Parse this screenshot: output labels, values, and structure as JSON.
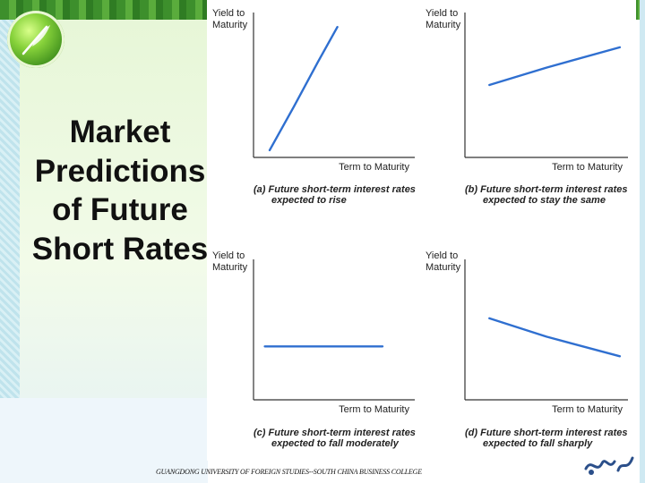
{
  "slide": {
    "title_lines": [
      "Market",
      "Predictions",
      "of Future",
      "Short Rates"
    ],
    "footer": "GUANGDONG UNIVERSITY OF FOREIGN STUDIES--SOUTH CHINA BUSINESS COLLEGE"
  },
  "colors": {
    "curve": "#2f6fd0",
    "axis": "#333333",
    "title_text": "#111111"
  },
  "chart_data": [
    {
      "type": "line",
      "ylabel": [
        "Yield to",
        "Maturity"
      ],
      "xlabel": "Term to Maturity",
      "caption": [
        "(a)  Future short-term interest rates",
        "expected to rise"
      ],
      "curve": [
        [
          0.1,
          0.05
        ],
        [
          0.25,
          0.35
        ],
        [
          0.4,
          0.66
        ],
        [
          0.52,
          0.9
        ]
      ]
    },
    {
      "type": "line",
      "ylabel": [
        "Yield to",
        "Maturity"
      ],
      "xlabel": "Term to Maturity",
      "caption": [
        "(b)  Future short-term interest rates",
        "expected to stay the same"
      ],
      "curve": [
        [
          0.15,
          0.5
        ],
        [
          0.5,
          0.62
        ],
        [
          0.95,
          0.76
        ]
      ]
    },
    {
      "type": "line",
      "ylabel": [
        "Yield to",
        "Maturity"
      ],
      "xlabel": "Term to Maturity",
      "caption": [
        "(c)  Future short-term interest rates",
        "expected to fall moderately"
      ],
      "curve": [
        [
          0.07,
          0.38
        ],
        [
          0.8,
          0.38
        ]
      ]
    },
    {
      "type": "line",
      "ylabel": [
        "Yield to",
        "Maturity"
      ],
      "xlabel": "Term to Maturity",
      "caption": [
        "(d)  Future short-term interest rates",
        "expected to fall sharply"
      ],
      "curve": [
        [
          0.15,
          0.58
        ],
        [
          0.5,
          0.45
        ],
        [
          0.95,
          0.31
        ]
      ]
    }
  ]
}
